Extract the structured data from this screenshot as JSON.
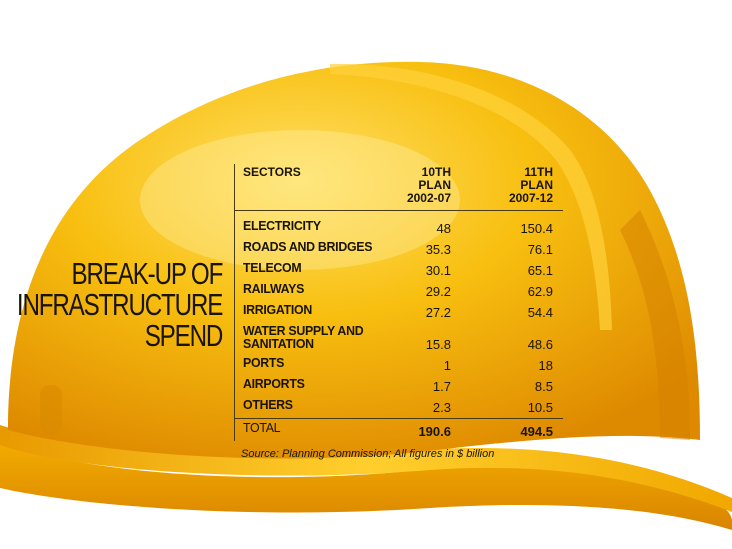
{
  "title_lines": [
    "BREAK-UP OF",
    "INFRASTRUCTURE",
    "SPEND"
  ],
  "source": "Source: Planning Commission; All figures in $ billion",
  "colors": {
    "helmet_dark": "#e08e00",
    "helmet_mid": "#f5b300",
    "helmet_light": "#ffd84a",
    "text": "#1a1408"
  },
  "icon": "hard-hat",
  "chart_data": {
    "type": "table",
    "columns": [
      "SECTORS",
      "10TH\nPLAN\n2002-07",
      "11TH\nPLAN\n2007-12"
    ],
    "rows": [
      {
        "sector": "ELECTRICITY",
        "plan10": "48",
        "plan11": "150.4"
      },
      {
        "sector": "ROADS AND BRIDGES",
        "plan10": "35.3",
        "plan11": "76.1"
      },
      {
        "sector": "TELECOM",
        "plan10": "30.1",
        "plan11": "65.1"
      },
      {
        "sector": "RAILWAYS",
        "plan10": "29.2",
        "plan11": "62.9"
      },
      {
        "sector": "IRRIGATION",
        "plan10": "27.2",
        "plan11": "54.4"
      },
      {
        "sector": "WATER SUPPLY AND SANITATION",
        "plan10": "15.8",
        "plan11": "48.6"
      },
      {
        "sector": "PORTS",
        "plan10": "1",
        "plan11": "18"
      },
      {
        "sector": "AIRPORTS",
        "plan10": "1.7",
        "plan11": "8.5"
      },
      {
        "sector": "OTHERS",
        "plan10": "2.3",
        "plan11": "10.5"
      }
    ],
    "total": {
      "sector": "TOTAL",
      "plan10": "190.6",
      "plan11": "494.5"
    }
  }
}
